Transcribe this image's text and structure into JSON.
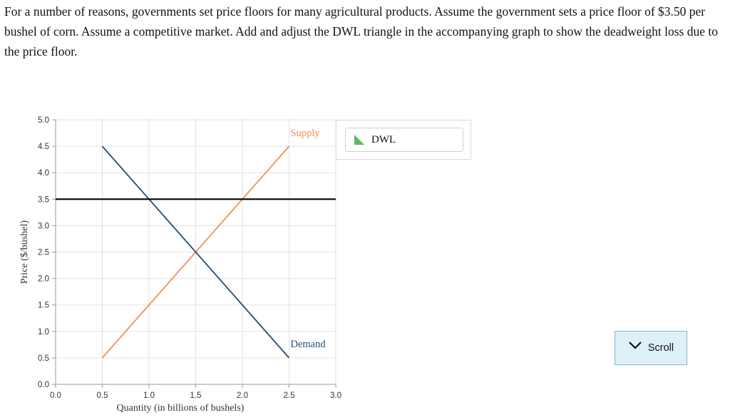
{
  "question": "For a number of reasons, governments set price floors for many agricultural products. Assume the government sets a price floor of $3.50 per bushel of corn. Assume a competitive market. Add and adjust the DWL triangle in the accompanying graph to show the deadweight loss due to the price floor.",
  "legend": {
    "dwl_label": "DWL",
    "dwl_icon": "green-triangle-icon",
    "dwl_color": "#5cb85c"
  },
  "scroll_button": {
    "label": "Scroll",
    "icon": "chevron-down-icon"
  },
  "chart_data": {
    "type": "line",
    "xlabel": "Quantity (in billions of bushels)",
    "ylabel": "Price ($/bushel)",
    "xlim": [
      0,
      3.0
    ],
    "ylim": [
      0,
      5.0
    ],
    "x_ticks": [
      "0.0",
      "0.5",
      "1.0",
      "1.5",
      "2.0",
      "2.5",
      "3.0"
    ],
    "y_ticks": [
      "0.0",
      "0.5",
      "1.0",
      "1.5",
      "2.0",
      "2.5",
      "3.0",
      "3.5",
      "4.0",
      "4.5",
      "5.0"
    ],
    "grid": true,
    "series": [
      {
        "name": "Supply",
        "color": "#f0905a",
        "points": [
          [
            0.5,
            0.5
          ],
          [
            2.5,
            4.5
          ]
        ]
      },
      {
        "name": "Demand",
        "color": "#1f4e79",
        "points": [
          [
            0.5,
            4.5
          ],
          [
            2.5,
            0.5
          ]
        ]
      }
    ],
    "price_floor": {
      "value": 3.5,
      "color": "#000000"
    }
  }
}
